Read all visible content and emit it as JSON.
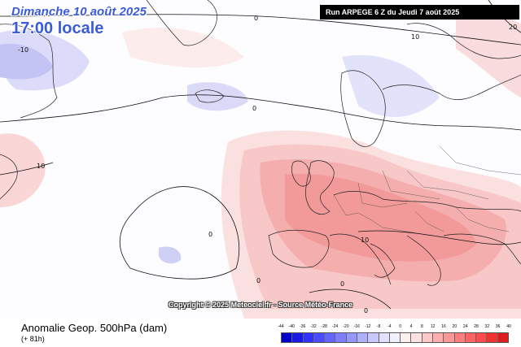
{
  "header": {
    "date": "Dimanche 10 août 2025",
    "time": "17:00 locale",
    "run": "Run ARPEGE 6 Z du Jeudi 7 août 2025"
  },
  "copyright": "Copyright © 2025 Meteociel.fr - Source Météo-France",
  "footer": {
    "parameter": "Anomalie Geop. 500hPa (dam)",
    "lead_time": "(+ 81h)"
  },
  "contour_labels": [
    "0",
    "10",
    "20",
    "-10",
    "0",
    "10",
    "0",
    "10",
    "0",
    "0",
    "0"
  ],
  "legend": {
    "ticks": [
      "-44",
      "-40",
      "-36",
      "-32",
      "-28",
      "-24",
      "-20",
      "-16",
      "-12",
      "-8",
      "-4",
      "0",
      "4",
      "8",
      "12",
      "16",
      "20",
      "24",
      "28",
      "32",
      "36",
      "40"
    ],
    "colors": [
      "#0000c8",
      "#1a1ae6",
      "#3232ff",
      "#4b4bff",
      "#6464ff",
      "#7d7dff",
      "#9696ff",
      "#afafff",
      "#c8c8ff",
      "#e1e1ff",
      "#f0f0ff",
      "#fff0f0",
      "#ffe1e1",
      "#ffc8c8",
      "#ffafaf",
      "#ff9696",
      "#ff7d7d",
      "#ff6464",
      "#ff4b4b",
      "#f03232",
      "#dc1e1e"
    ]
  },
  "colors": {
    "title_blue": "#3a5bd9",
    "positive_anomaly": "#f4a0a0",
    "negative_anomaly": "#c8c8f5"
  }
}
